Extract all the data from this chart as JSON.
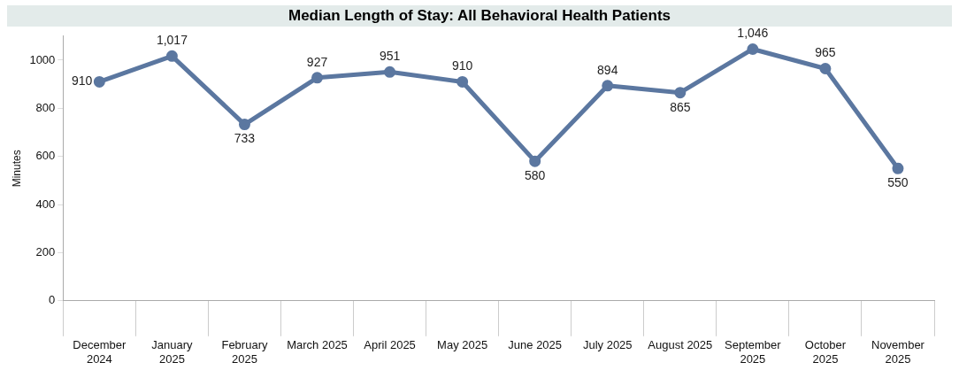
{
  "chart_data": {
    "type": "line",
    "title": "Median Length of Stay: All Behavioral Health Patients",
    "ylabel": "Minutes",
    "categories": [
      "December 2024",
      "January 2025",
      "February 2025",
      "March 2025",
      "April 2025",
      "May 2025",
      "June 2025",
      "July 2025",
      "August 2025",
      "September 2025",
      "October 2025",
      "November 2025"
    ],
    "series": [
      {
        "color": "#5b77a0",
        "values": [
          910,
          1017,
          733,
          927,
          951,
          910,
          580,
          894,
          865,
          1046,
          965,
          550
        ],
        "value_labels": [
          "910",
          "1,017",
          "733",
          "927",
          "951",
          "910",
          "580",
          "894",
          "865",
          "1,046",
          "965",
          "550"
        ]
      }
    ],
    "ylim": [
      0,
      1100
    ],
    "yticks": [
      0,
      200,
      400,
      600,
      800,
      1000
    ],
    "grid": false,
    "legend": false,
    "marker": "circle",
    "line_style": "solid"
  }
}
